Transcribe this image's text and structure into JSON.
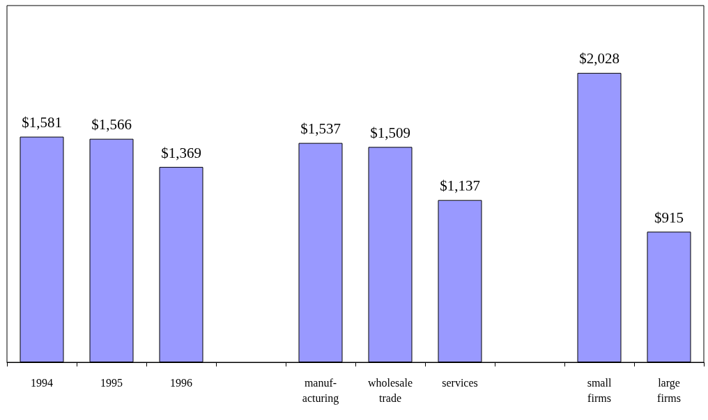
{
  "chart_data": {
    "type": "bar",
    "categories": [
      "1994",
      "1995",
      "1996",
      null,
      "manuf-\nacturing",
      "wholesale\ntrade",
      "services",
      null,
      "small\nfirms",
      "large\nfirms"
    ],
    "values": [
      1581,
      1566,
      1369,
      null,
      1537,
      1509,
      1137,
      null,
      2028,
      915
    ],
    "value_labels": [
      "$1,581",
      "$1,566",
      "$1,369",
      null,
      "$1,537",
      "$1,509",
      "$1,137",
      null,
      "$2,028",
      "$915"
    ],
    "color": "#9999ff"
  }
}
